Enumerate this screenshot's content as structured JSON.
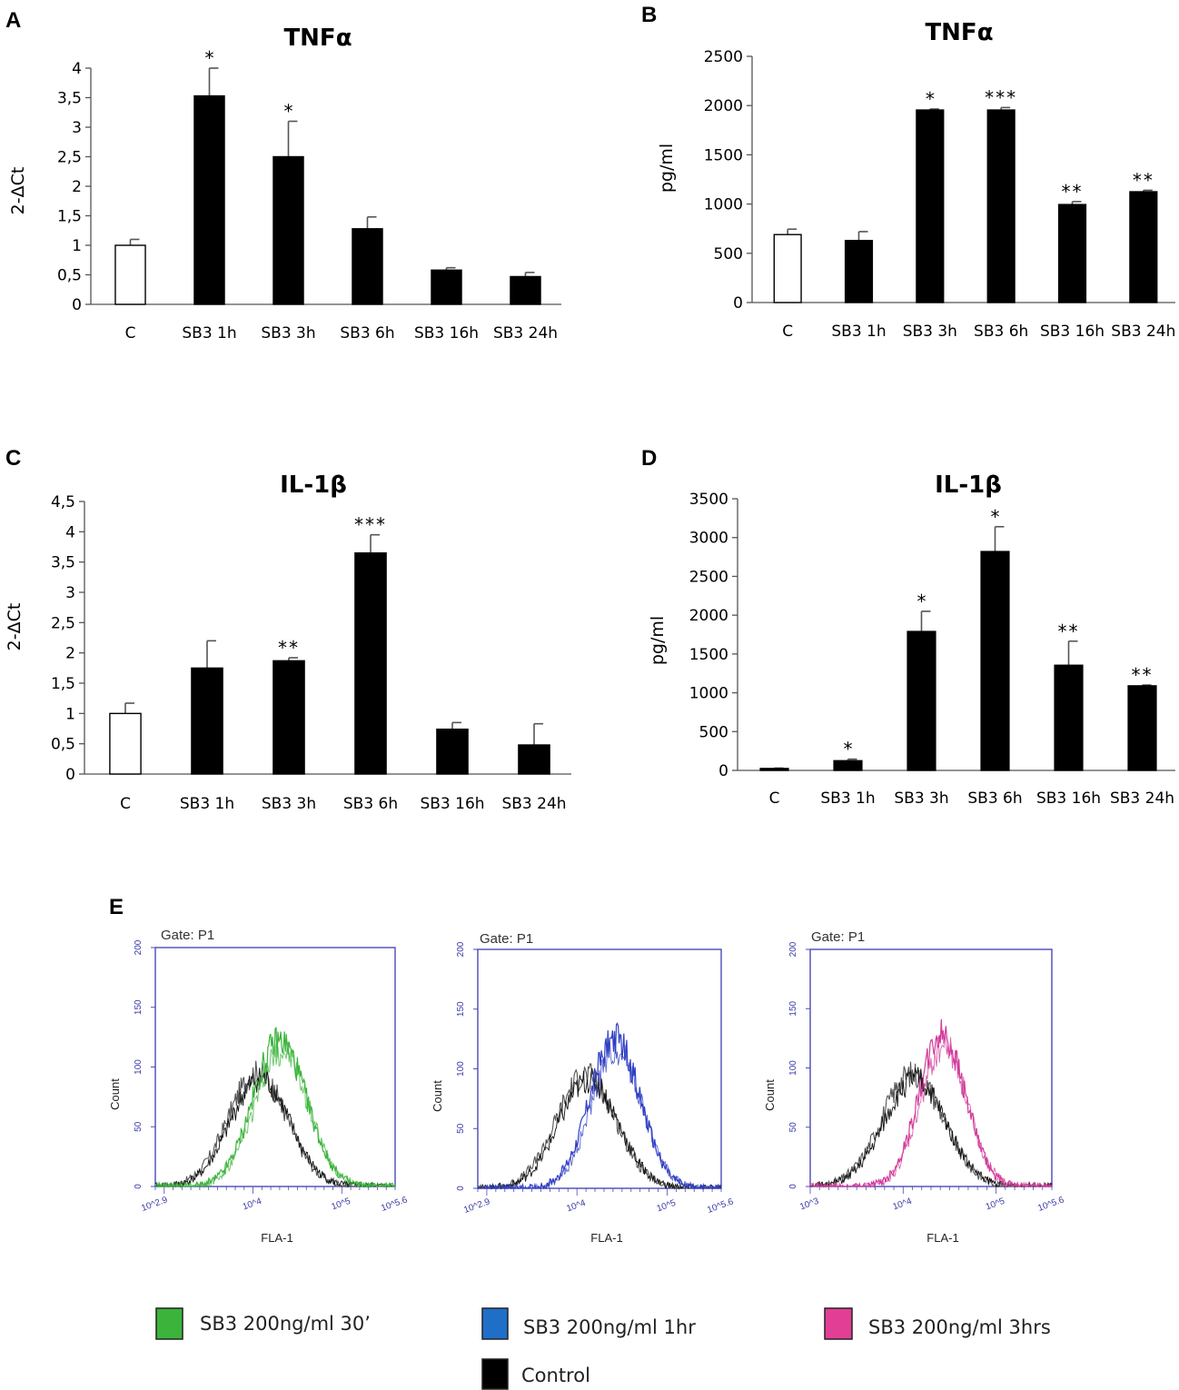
{
  "chart_data": [
    {
      "panel": "A",
      "type": "bar",
      "title": "TNFα",
      "ylabel": "2-ΔCt",
      "xlabel": "",
      "ylim": [
        0,
        4
      ],
      "yticks": [
        "0",
        "0,5",
        "1",
        "1,5",
        "2",
        "2,5",
        "3",
        "3,5",
        "4"
      ],
      "categories": [
        "C",
        "SB3 1h",
        "SB3 3h",
        "SB3 6h",
        "SB3 16h",
        "SB3 24h"
      ],
      "values": [
        1.0,
        3.53,
        2.5,
        1.28,
        0.58,
        0.47
      ],
      "errors": [
        0.1,
        0.47,
        0.6,
        0.2,
        0.04,
        0.07
      ],
      "significance": [
        "",
        "*",
        "*",
        "",
        "",
        ""
      ],
      "fills": [
        "white",
        "black",
        "black",
        "black",
        "black",
        "black"
      ]
    },
    {
      "panel": "B",
      "type": "bar",
      "title": "TNFα",
      "ylabel": "pg/ml",
      "xlabel": "",
      "ylim": [
        0,
        2500
      ],
      "yticks": [
        "0",
        "500",
        "1000",
        "1500",
        "2000",
        "2500"
      ],
      "categories": [
        "C",
        "SB3 1h",
        "SB3 3h",
        "SB3 6h",
        "SB3 16h",
        "SB3 24h"
      ],
      "values": [
        690,
        630,
        1955,
        1955,
        995,
        1125
      ],
      "errors": [
        55,
        90,
        10,
        25,
        30,
        15
      ],
      "significance": [
        "",
        "",
        "*",
        "***",
        "**",
        "**"
      ],
      "fills": [
        "white",
        "black",
        "black",
        "black",
        "black",
        "black"
      ]
    },
    {
      "panel": "C",
      "type": "bar",
      "title": "IL-1β",
      "ylabel": "2-ΔCt",
      "xlabel": "",
      "ylim": [
        0,
        4.5
      ],
      "yticks": [
        "0",
        "0,5",
        "1",
        "1,5",
        "2",
        "2,5",
        "3",
        "3,5",
        "4",
        "4,5"
      ],
      "categories": [
        "C",
        "SB3 1h",
        "SB3 3h",
        "SB3 6h",
        "SB3 16h",
        "SB3 24h"
      ],
      "values": [
        1.0,
        1.75,
        1.87,
        3.65,
        0.74,
        0.48
      ],
      "errors": [
        0.17,
        0.45,
        0.05,
        0.3,
        0.11,
        0.35
      ],
      "significance": [
        "",
        "",
        "**",
        "***",
        "",
        ""
      ],
      "fills": [
        "white",
        "black",
        "black",
        "black",
        "black",
        "black"
      ]
    },
    {
      "panel": "D",
      "type": "bar",
      "title": "IL-1β",
      "ylabel": "pg/ml",
      "xlabel": "",
      "ylim": [
        0,
        3500
      ],
      "yticks": [
        "0",
        "500",
        "1000",
        "1500",
        "2000",
        "2500",
        "3000",
        "3500"
      ],
      "categories": [
        "C",
        "SB3 1h",
        "SB3 3h",
        "SB3 6h",
        "SB3 16h",
        "SB3 24h"
      ],
      "values": [
        25,
        125,
        1790,
        2820,
        1355,
        1090
      ],
      "errors": [
        5,
        20,
        260,
        320,
        310,
        10
      ],
      "significance": [
        "",
        "*",
        "*",
        "*",
        "**",
        "**"
      ],
      "fills": [
        "black",
        "black",
        "black",
        "black",
        "black",
        "black"
      ]
    },
    {
      "panel": "E",
      "type": "line",
      "description_free": true,
      "gate_label": "Gate: P1",
      "xlabel": "FLA-1",
      "ylabel": "Count",
      "ylim": [
        0,
        200
      ],
      "yticks": [
        "0",
        "50",
        "100",
        "150",
        "200"
      ],
      "histograms": [
        {
          "xticks": [
            "10^2.9",
            "10^4",
            "10^5",
            "10^5.6"
          ],
          "xrange": [
            2.9,
            5.6
          ],
          "control_peak": {
            "x": 4.05,
            "y": 95,
            "width": 0.33
          },
          "treated": {
            "name": "SB3 200ng/ml 30’",
            "color": "#3cb43c",
            "peak_x": 4.3,
            "peak_y": 122,
            "width": 0.3
          }
        },
        {
          "xticks": [
            "10^2.9",
            "10^4",
            "10^5",
            "10^5.6"
          ],
          "xrange": [
            2.9,
            5.6
          ],
          "control_peak": {
            "x": 4.1,
            "y": 95,
            "width": 0.33
          },
          "treated": {
            "name": "SB3 200ng/ml 1hr",
            "color": "#2f3fc4",
            "peak_x": 4.42,
            "peak_y": 125,
            "width": 0.28
          }
        },
        {
          "xticks": [
            "10^3",
            "10^4",
            "10^5",
            "10^5.6"
          ],
          "xrange": [
            3.0,
            5.6
          ],
          "control_peak": {
            "x": 4.1,
            "y": 95,
            "width": 0.33
          },
          "treated": {
            "name": "SB3 200ng/ml 3hrs",
            "color": "#d23c9b",
            "peak_x": 4.42,
            "peak_y": 128,
            "width": 0.25
          }
        }
      ]
    }
  ],
  "legend": [
    {
      "label": "SB3 200ng/ml 30’",
      "color": "#3cb43c"
    },
    {
      "label": "SB3 200ng/ml 1hr",
      "color": "#1f6fc9"
    },
    {
      "label": "SB3 200ng/ml 3hrs",
      "color": "#e33e95"
    },
    {
      "label": "Control",
      "color": "#000000"
    }
  ]
}
